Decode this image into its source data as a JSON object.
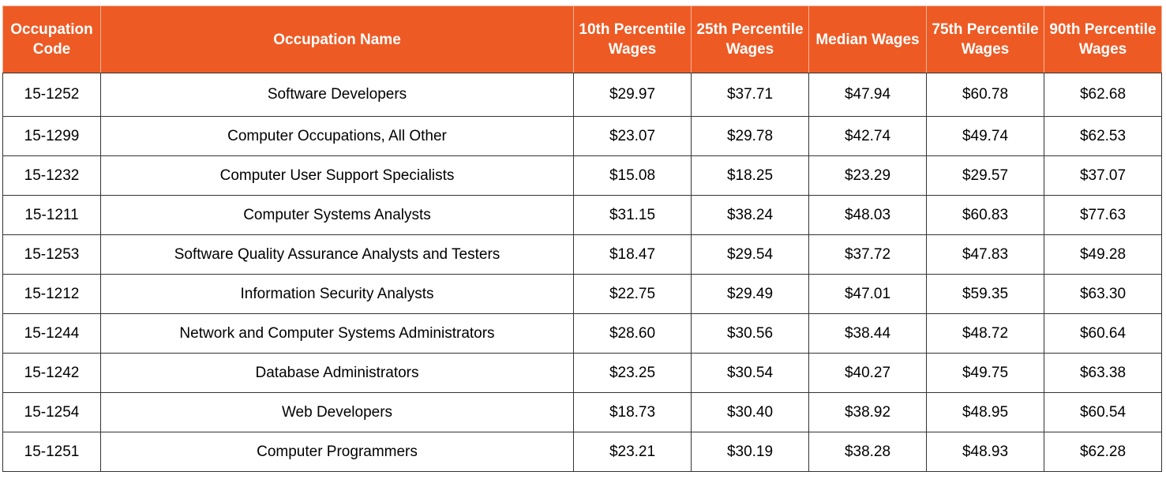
{
  "table": {
    "headers": [
      [
        "Occupation",
        "Code"
      ],
      [
        "Occupation Name"
      ],
      [
        "10th Percentile",
        "Wages"
      ],
      [
        "25th Percentile",
        "Wages"
      ],
      [
        "Median Wages"
      ],
      [
        "75th Percentile",
        "Wages"
      ],
      [
        "90th Percentile",
        "Wages"
      ]
    ],
    "rows": [
      [
        "15-1252",
        "Software Developers",
        "$29.97",
        "$37.71",
        "$47.94",
        "$60.78",
        "$62.68"
      ],
      [
        "15-1299",
        "Computer Occupations, All Other",
        "$23.07",
        "$29.78",
        "$42.74",
        "$49.74",
        "$62.53"
      ],
      [
        "15-1232",
        "Computer User Support Specialists",
        "$15.08",
        "$18.25",
        "$23.29",
        "$29.57",
        "$37.07"
      ],
      [
        "15-1211",
        "Computer Systems Analysts",
        "$31.15",
        "$38.24",
        "$48.03",
        "$60.83",
        "$77.63"
      ],
      [
        "15-1253",
        "Software Quality Assurance Analysts and Testers",
        "$18.47",
        "$29.54",
        "$37.72",
        "$47.83",
        "$49.28"
      ],
      [
        "15-1212",
        "Information Security Analysts",
        "$22.75",
        "$29.49",
        "$47.01",
        "$59.35",
        "$63.30"
      ],
      [
        "15-1244",
        "Network and Computer Systems Administrators",
        "$28.60",
        "$30.56",
        "$38.44",
        "$48.72",
        "$60.64"
      ],
      [
        "15-1242",
        "Database Administrators",
        "$23.25",
        "$30.54",
        "$40.27",
        "$49.75",
        "$63.38"
      ],
      [
        "15-1254",
        "Web Developers",
        "$18.73",
        "$30.40",
        "$38.92",
        "$48.95",
        "$60.54"
      ],
      [
        "15-1251",
        "Computer Programmers",
        "$23.21",
        "$30.19",
        "$38.28",
        "$48.93",
        "$62.28"
      ]
    ]
  },
  "colors": {
    "header_bg": "#ee5a24",
    "header_text": "#ffffff",
    "grid": "#333333"
  }
}
